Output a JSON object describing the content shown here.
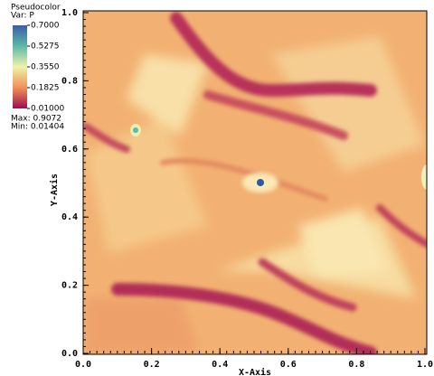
{
  "chart_data": {
    "type": "pseudocolor",
    "legend": {
      "title": "Pseudocolor",
      "variable": "Var: P",
      "colorlim": [
        0.01,
        0.7
      ],
      "colorticks": [
        {
          "value": 0.7,
          "label": "0.7000"
        },
        {
          "value": 0.5275,
          "label": "0.5275"
        },
        {
          "value": 0.355,
          "label": "0.3550"
        },
        {
          "value": 0.1825,
          "label": "0.1825"
        },
        {
          "value": 0.01,
          "label": "0.01000"
        }
      ],
      "max": "Max: 0.9072",
      "min": "Min: 0.01404"
    },
    "xlabel": "X-Axis",
    "ylabel": "Y-Axis",
    "xlim": [
      0,
      1
    ],
    "ylim": [
      0,
      1
    ],
    "xticks": [
      {
        "value": 0,
        "label": "0.0"
      },
      {
        "value": 0.2,
        "label": "0.2"
      },
      {
        "value": 0.4,
        "label": "0.4"
      },
      {
        "value": 0.6,
        "label": "0.6"
      },
      {
        "value": 0.8,
        "label": "0.8"
      },
      {
        "value": 1,
        "label": "1.0"
      }
    ],
    "yticks": [
      {
        "value": 0,
        "label": "0.0"
      },
      {
        "value": 0.2,
        "label": "0.2"
      },
      {
        "value": 0.4,
        "label": "0.4"
      },
      {
        "value": 0.6,
        "label": "0.6"
      },
      {
        "value": 0.8,
        "label": "0.8"
      },
      {
        "value": 1,
        "label": "1.0"
      }
    ]
  }
}
